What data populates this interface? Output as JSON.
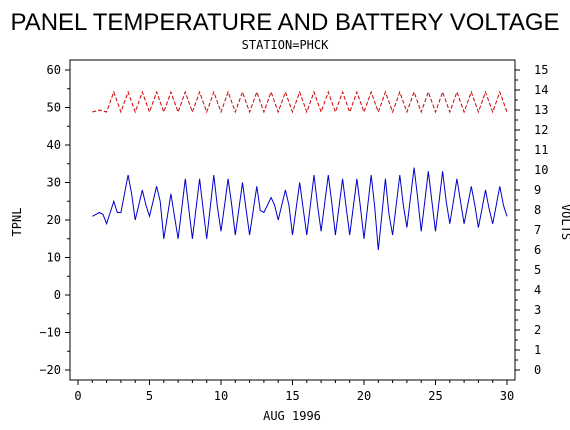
{
  "chart_data": {
    "type": "line",
    "title": "PANEL TEMPERATURE AND BATTERY VOLTAGE",
    "subtitle": "STATION=PHCK",
    "xlabel": "AUG 1996",
    "ylabel": "TPNL",
    "y2label": "VOLTS",
    "xlim": [
      0,
      30
    ],
    "ylim": [
      -20,
      60
    ],
    "y2lim": [
      0,
      15
    ],
    "x_ticks": [
      0,
      5,
      10,
      15,
      20,
      25,
      30
    ],
    "y_ticks": [
      -20,
      -10,
      0,
      10,
      20,
      30,
      40,
      50,
      60
    ],
    "y2_ticks": [
      0,
      1,
      2,
      3,
      4,
      5,
      6,
      7,
      8,
      9,
      10,
      11,
      12,
      13,
      14,
      15
    ],
    "grid": false,
    "series": [
      {
        "axis": "left",
        "color": "#0000cc",
        "style": "solid",
        "daily": [
          [
            1,
            22,
            21
          ],
          [
            2,
            25,
            19
          ],
          [
            3,
            32,
            22
          ],
          [
            4,
            28,
            20
          ],
          [
            5,
            29,
            21
          ],
          [
            6,
            27,
            15
          ],
          [
            7,
            31,
            15
          ],
          [
            8,
            31,
            15
          ],
          [
            9,
            32,
            15
          ],
          [
            10,
            31,
            17
          ],
          [
            11,
            30,
            16
          ],
          [
            12,
            29,
            16
          ],
          [
            13,
            26,
            22
          ],
          [
            14,
            28,
            20
          ],
          [
            15,
            30,
            16
          ],
          [
            16,
            32,
            16
          ],
          [
            17,
            32,
            17
          ],
          [
            18,
            31,
            16
          ],
          [
            19,
            31,
            16
          ],
          [
            20,
            32,
            15
          ],
          [
            21,
            31,
            12
          ],
          [
            22,
            32,
            16
          ],
          [
            23,
            34,
            18
          ],
          [
            24,
            33,
            17
          ],
          [
            25,
            33,
            17
          ],
          [
            26,
            31,
            19
          ],
          [
            27,
            29,
            19
          ],
          [
            28,
            28,
            18
          ],
          [
            29,
            29,
            19
          ],
          [
            30,
            31,
            21
          ]
        ]
      },
      {
        "axis": "right",
        "color": "#cc0000",
        "style": "dashed",
        "daily": [
          [
            1,
            13.0,
            12.9
          ],
          [
            2,
            13.9,
            12.9
          ],
          [
            3,
            13.9,
            12.9
          ],
          [
            4,
            13.9,
            12.9
          ],
          [
            5,
            13.9,
            12.9
          ],
          [
            6,
            13.9,
            12.9
          ],
          [
            7,
            13.9,
            12.9
          ],
          [
            8,
            13.9,
            12.9
          ],
          [
            9,
            13.9,
            12.9
          ],
          [
            10,
            13.9,
            12.9
          ],
          [
            11,
            13.9,
            12.9
          ],
          [
            12,
            13.9,
            12.9
          ],
          [
            13,
            13.9,
            12.9
          ],
          [
            14,
            13.9,
            12.9
          ],
          [
            15,
            13.9,
            12.9
          ],
          [
            16,
            13.9,
            12.9
          ],
          [
            17,
            13.9,
            12.9
          ],
          [
            18,
            13.9,
            12.9
          ],
          [
            19,
            13.9,
            12.9
          ],
          [
            20,
            13.9,
            12.9
          ],
          [
            21,
            13.9,
            12.9
          ],
          [
            22,
            13.9,
            12.9
          ],
          [
            23,
            13.9,
            12.9
          ],
          [
            24,
            13.9,
            12.9
          ],
          [
            25,
            13.9,
            12.9
          ],
          [
            26,
            13.9,
            12.9
          ],
          [
            27,
            13.9,
            12.9
          ],
          [
            28,
            13.9,
            12.9
          ],
          [
            29,
            13.9,
            12.9
          ],
          [
            30,
            13.9,
            12.9
          ]
        ]
      }
    ]
  }
}
